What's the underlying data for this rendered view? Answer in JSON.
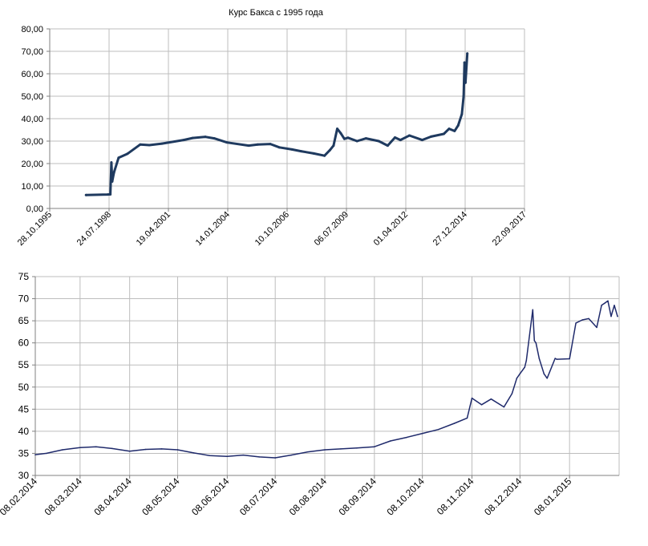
{
  "chart_data": [
    {
      "type": "line",
      "title": "Курс Бакса с 1995 года",
      "xlabel": "",
      "ylabel": "",
      "ylim": [
        0,
        80
      ],
      "yticks": [
        "0,00",
        "10,00",
        "20,00",
        "30,00",
        "40,00",
        "50,00",
        "60,00",
        "70,00",
        "80,00"
      ],
      "xlim": [
        "28.10.1995",
        "22.09.2017"
      ],
      "xticks": [
        "28.10.1995",
        "24.07.1998",
        "19.04.2001",
        "14.01.2004",
        "10.10.2006",
        "06.07.2009",
        "01.04.2012",
        "27.12.2014",
        "22.09.2017"
      ],
      "grid": true,
      "line_color": "#1f3a5f",
      "series": [
        {
          "x": [
            "01.07.1997",
            "01.07.1998",
            "15.08.1998",
            "01.09.1998",
            "15.09.1998",
            "15.10.1998",
            "01.01.1999",
            "01.06.1999",
            "01.01.2000",
            "01.06.2000",
            "01.01.2001",
            "01.01.2002",
            "01.06.2002",
            "01.01.2003",
            "01.06.2003",
            "01.01.2004",
            "01.01.2005",
            "01.06.2005",
            "01.01.2006",
            "01.06.2006",
            "01.01.2007",
            "01.06.2007",
            "01.01.2008",
            "01.07.2008",
            "01.10.2008",
            "01.12.2008",
            "01.02.2009",
            "01.04.2009",
            "01.06.2009",
            "01.08.2009",
            "01.01.2010",
            "01.06.2010",
            "01.01.2011",
            "01.06.2011",
            "01.10.2011",
            "01.01.2012",
            "01.06.2012",
            "01.01.2013",
            "01.06.2013",
            "01.01.2014",
            "01.04.2014",
            "01.07.2014",
            "01.09.2014",
            "01.11.2014",
            "01.12.2014",
            "16.12.2014",
            "01.01.2015",
            "01.02.2015"
          ],
          "values": [
            6.0,
            6.2,
            6.3,
            20.5,
            12,
            16,
            22.6,
            24.4,
            28.5,
            28.2,
            28.9,
            30.5,
            31.4,
            31.9,
            31.2,
            29.4,
            28.0,
            28.5,
            28.7,
            27.2,
            26.3,
            25.5,
            24.5,
            23.5,
            26.0,
            28.0,
            35.5,
            33.5,
            31.0,
            31.5,
            30.0,
            31.2,
            30.0,
            28.0,
            31.6,
            30.5,
            32.5,
            30.5,
            32.0,
            33.2,
            35.5,
            34.5,
            37.0,
            42.0,
            50.0,
            65.0,
            56.0,
            69.0
          ]
        }
      ]
    },
    {
      "type": "line",
      "title": "",
      "xlabel": "",
      "ylabel": "",
      "ylim": [
        30,
        75
      ],
      "yticks": [
        "30",
        "35",
        "40",
        "45",
        "50",
        "55",
        "60",
        "65",
        "70",
        "75"
      ],
      "xlim": [
        "08.02.2014",
        "08.02.2015"
      ],
      "xticks": [
        "08.02.2014",
        "08.03.2014",
        "08.04.2014",
        "08.05.2014",
        "08.06.2014",
        "08.07.2014",
        "08.08.2014",
        "08.09.2014",
        "08.10.2014",
        "08.11.2014",
        "08.12.2014",
        "08.01.2015"
      ],
      "grid": true,
      "line_color": "#1f2a6b",
      "series": [
        {
          "x": [
            "08.02.2014",
            "15.02.2014",
            "25.02.2014",
            "08.03.2014",
            "18.03.2014",
            "28.03.2014",
            "08.04.2014",
            "18.04.2014",
            "28.04.2014",
            "08.05.2014",
            "18.05.2014",
            "28.05.2014",
            "08.06.2014",
            "18.06.2014",
            "28.06.2014",
            "08.07.2014",
            "18.07.2014",
            "28.07.2014",
            "08.08.2014",
            "18.08.2014",
            "28.08.2014",
            "08.09.2014",
            "18.09.2014",
            "28.09.2014",
            "08.10.2014",
            "18.10.2014",
            "28.10.2014",
            "05.11.2014",
            "08.11.2014",
            "14.11.2014",
            "20.11.2014",
            "28.11.2014",
            "03.12.2014",
            "06.12.2014",
            "08.12.2014",
            "11.12.2014",
            "12.12.2014",
            "16.12.2014",
            "17.12.2014",
            "18.12.2014",
            "20.12.2014",
            "23.12.2014",
            "25.12.2014",
            "30.12.2014",
            "31.12.2014",
            "08.01.2015",
            "12.01.2015",
            "16.01.2015",
            "20.01.2015",
            "25.01.2015",
            "28.01.2015",
            "30.01.2015",
            "01.02.2015",
            "03.02.2015",
            "05.02.2015",
            "07.02.2015"
          ],
          "values": [
            34.7,
            35.0,
            35.8,
            36.3,
            36.5,
            36.1,
            35.5,
            35.9,
            36.0,
            35.8,
            35.1,
            34.5,
            34.3,
            34.6,
            34.2,
            34.0,
            34.6,
            35.3,
            35.8,
            36.0,
            36.2,
            36.5,
            37.8,
            38.6,
            39.5,
            40.4,
            41.8,
            43.0,
            47.5,
            46.0,
            47.3,
            45.5,
            48.5,
            52.0,
            53.0,
            54.5,
            56.0,
            67.5,
            60.5,
            60.0,
            56.5,
            53.0,
            52.0,
            56.5,
            56.3,
            56.4,
            64.5,
            65.2,
            65.5,
            63.5,
            68.5,
            69.0,
            69.5,
            66.0,
            68.5,
            66.0
          ]
        }
      ]
    }
  ]
}
